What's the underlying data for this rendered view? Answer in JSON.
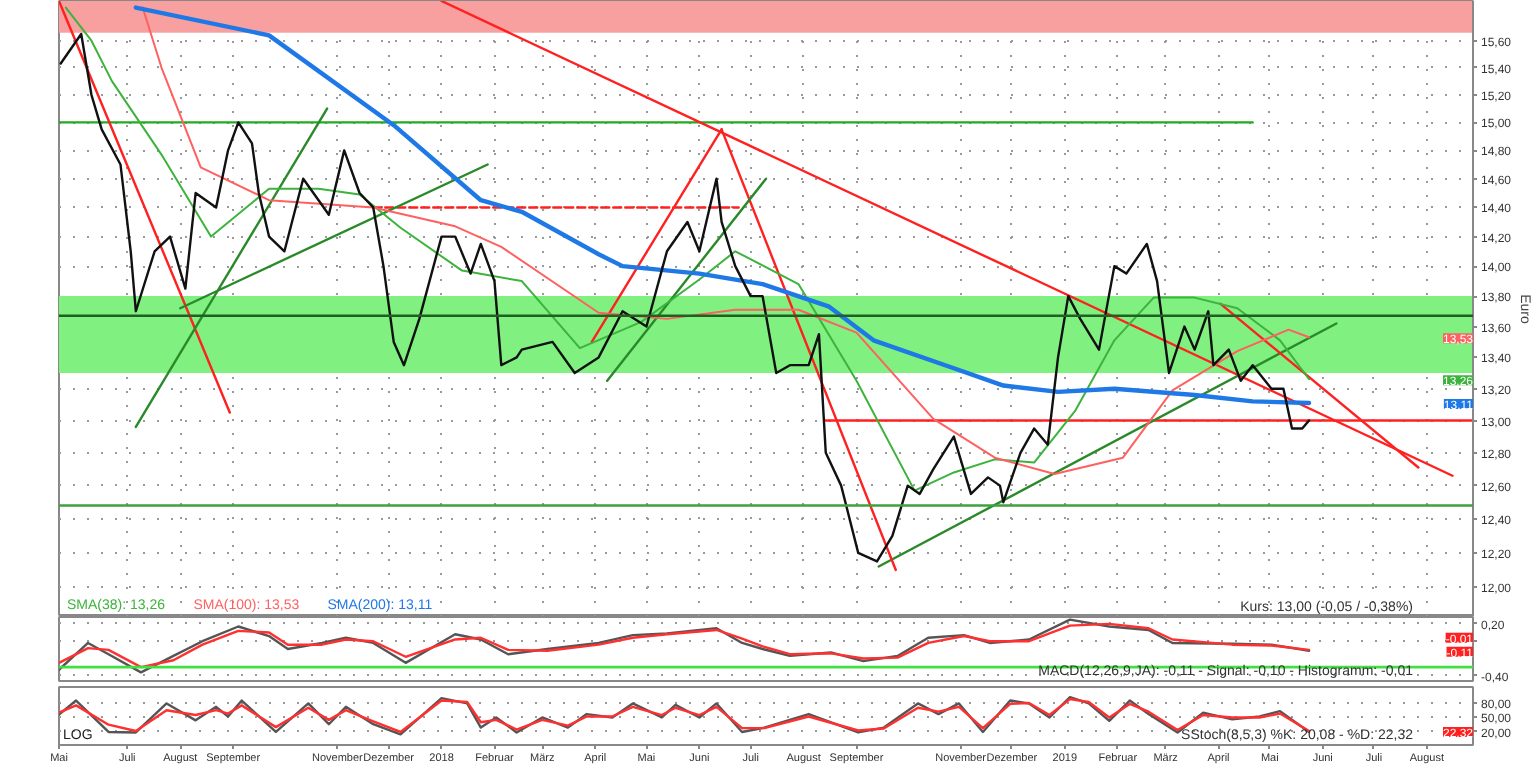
{
  "chart_data": [
    {
      "type": "line",
      "ylabel": "Euro",
      "log": "y",
      "grid": true,
      "tick_labels": "y",
      "xlim": [
        "2017-05-22",
        "2019-08-28"
      ],
      "ylim": [
        11.83,
        15.9
      ],
      "xticks": [
        {
          "value": "2017-05-22",
          "label": null
        },
        {
          "value": "2017-07-01",
          "label": null
        },
        {
          "value": "2017-08-01",
          "label": null
        },
        {
          "value": "2017-09-01",
          "label": null
        },
        {
          "value": "2017-11-01",
          "label": null
        },
        {
          "value": "2017-12-01",
          "label": null
        },
        {
          "value": "2018-01-01",
          "label": null
        },
        {
          "value": "2018-02-01",
          "label": null
        },
        {
          "value": "2018-03-01",
          "label": null
        },
        {
          "value": "2018-04-01",
          "label": null
        },
        {
          "value": "2018-05-01",
          "label": null
        },
        {
          "value": "2018-06-01",
          "label": null
        },
        {
          "value": "2018-07-01",
          "label": null
        },
        {
          "value": "2018-08-01",
          "label": null
        },
        {
          "value": "2018-09-01",
          "label": null
        },
        {
          "value": "2018-11-01",
          "label": null
        },
        {
          "value": "2018-12-01",
          "label": null
        },
        {
          "value": "2019-01-01",
          "label": null
        },
        {
          "value": "2019-02-01",
          "label": null
        },
        {
          "value": "2019-03-01",
          "label": null
        },
        {
          "value": "2019-04-01",
          "label": null
        },
        {
          "value": "2019-05-01",
          "label": null
        },
        {
          "value": "2019-06-01",
          "label": null
        },
        {
          "value": "2019-07-01",
          "label": null
        },
        {
          "value": "2019-08-01",
          "label": null
        }
      ],
      "yticks": [
        {
          "value": 12.0,
          "label": "12,00"
        },
        {
          "value": 12.2,
          "label": "12,20"
        },
        {
          "value": 12.4,
          "label": "12,40"
        },
        {
          "value": 12.6,
          "label": "12,60"
        },
        {
          "value": 12.8,
          "label": "12,80"
        },
        {
          "value": 13.0,
          "label": "13,00"
        },
        {
          "value": 13.2,
          "label": "13,20"
        },
        {
          "value": 13.4,
          "label": "13,40"
        },
        {
          "value": 13.6,
          "label": "13,60"
        },
        {
          "value": 13.8,
          "label": "13,80"
        },
        {
          "value": 14.0,
          "label": "14,00"
        },
        {
          "value": 14.2,
          "label": "14,20"
        },
        {
          "value": 14.4,
          "label": "14,40"
        },
        {
          "value": 14.6,
          "label": "14,60"
        },
        {
          "value": 14.8,
          "label": "14,80"
        },
        {
          "value": 15.0,
          "label": "15,00"
        },
        {
          "value": 15.2,
          "label": "15,20"
        },
        {
          "value": 15.4,
          "label": "15,40"
        },
        {
          "value": 15.6,
          "label": "15,60"
        }
      ],
      "bands": [
        {
          "axis": "y",
          "from": 13.3,
          "to": 13.8,
          "color": "#80f080"
        },
        {
          "axis": "y",
          "from": 15.66,
          "to": 15.9,
          "color": "#f8a0a0"
        }
      ],
      "ref_lines": [
        {
          "axis": "y",
          "value": 13.67,
          "color": "#206020"
        },
        {
          "axis": "y",
          "value": 12.48,
          "color": "#40a040"
        }
      ],
      "series": [
        {
          "type": "line",
          "color": "#22aa22",
          "x": [
            "2017-05-22",
            "2019-04-21"
          ],
          "values": [
            15.0,
            15.0
          ]
        },
        {
          "type": "line",
          "color": "#ff2020",
          "line_style": "dashed",
          "x": [
            "2017-11-22",
            "2018-06-24"
          ],
          "values": [
            14.4,
            14.4
          ]
        },
        {
          "type": "line",
          "color": "#ff2020",
          "x": [
            "2018-08-14",
            "2019-08-28"
          ],
          "values": [
            13.0,
            13.0
          ]
        },
        {
          "type": "line",
          "color": "#ff2020",
          "x": [
            "2018-01-01",
            "2019-08-16"
          ],
          "values": [
            15.9,
            12.66
          ]
        },
        {
          "type": "line",
          "color": "#2a8a2a",
          "x": [
            "2018-09-14",
            "2019-06-09"
          ],
          "values": [
            12.12,
            13.62
          ]
        },
        {
          "type": "line",
          "color": "#ff2020",
          "x": [
            "2019-04-02",
            "2019-07-27"
          ],
          "values": [
            13.75,
            12.71
          ]
        },
        {
          "type": "line",
          "color": "#ff2020",
          "x": [
            "2017-05-22",
            "2017-08-30"
          ],
          "values": [
            15.9,
            13.05
          ]
        },
        {
          "type": "line",
          "color": "#2a8a2a",
          "x": [
            "2017-07-06",
            "2017-10-26"
          ],
          "values": [
            12.96,
            15.1
          ]
        },
        {
          "type": "line",
          "color": "#2a8a2a",
          "x": [
            "2017-08-01",
            "2018-01-28"
          ],
          "values": [
            13.72,
            14.7
          ]
        },
        {
          "type": "line",
          "color": "#ff2020",
          "x": [
            "2018-03-30",
            "2018-06-14"
          ],
          "values": [
            13.5,
            14.95
          ]
        },
        {
          "type": "line",
          "color": "#ff2020",
          "x": [
            "2018-06-14",
            "2018-09-24"
          ],
          "values": [
            14.95,
            12.1
          ]
        },
        {
          "type": "line",
          "color": "#2a8a2a",
          "x": [
            "2018-04-08",
            "2018-07-10"
          ],
          "values": [
            13.25,
            14.6
          ]
        },
        {
          "type": "line",
          "name": "SMA(38): 13,26",
          "color": "#3cb33c",
          "x": [
            "2017-05-26",
            "2017-06-10",
            "2017-06-22",
            "2017-07-21",
            "2017-08-19",
            "2017-09-22",
            "2017-10-21",
            "2017-11-14",
            "2017-12-08",
            "2018-01-13",
            "2018-02-17",
            "2018-03-23",
            "2018-04-28",
            "2018-06-01",
            "2018-06-22",
            "2018-07-29",
            "2018-09-01",
            "2018-10-05",
            "2018-10-28",
            "2018-11-21",
            "2018-12-14",
            "2019-01-07",
            "2019-01-30",
            "2019-02-22",
            "2019-03-18",
            "2019-04-12",
            "2019-05-07",
            "2019-05-24"
          ],
          "values": [
            15.85,
            15.6,
            15.3,
            14.77,
            14.2,
            14.53,
            14.53,
            14.49,
            14.26,
            13.97,
            13.9,
            13.46,
            13.63,
            13.91,
            14.1,
            13.88,
            13.25,
            12.57,
            12.68,
            12.76,
            12.74,
            13.06,
            13.51,
            13.79,
            13.79,
            13.72,
            13.51,
            13.26
          ]
        },
        {
          "type": "line",
          "name": "SMA(100): 13,53",
          "color": "#ff6060",
          "x": [
            "2017-07-10",
            "2017-07-21",
            "2017-08-13",
            "2017-09-22",
            "2017-11-22",
            "2018-01-09",
            "2018-02-05",
            "2018-04-03",
            "2018-05-13",
            "2018-06-22",
            "2018-07-29",
            "2018-09-01",
            "2018-10-16",
            "2018-11-21",
            "2018-12-26",
            "2019-02-04",
            "2019-03-05",
            "2019-04-12",
            "2019-05-12",
            "2019-05-24"
          ],
          "values": [
            15.85,
            15.4,
            14.68,
            14.45,
            14.4,
            14.27,
            14.13,
            13.69,
            13.65,
            13.71,
            13.71,
            13.56,
            13.01,
            12.77,
            12.67,
            12.77,
            13.19,
            13.44,
            13.58,
            13.53
          ]
        },
        {
          "type": "line",
          "name": "SMA(200): 13,11",
          "color": "#1e78e6",
          "x": [
            "2017-07-06",
            "2017-09-22",
            "2017-12-04",
            "2018-01-24",
            "2018-02-17",
            "2018-04-03",
            "2018-04-17",
            "2018-06-01",
            "2018-07-08",
            "2018-08-16",
            "2018-09-11",
            "2018-10-28",
            "2018-11-26",
            "2018-12-28",
            "2019-01-30",
            "2019-03-18",
            "2019-04-21",
            "2019-05-24"
          ],
          "values": [
            15.85,
            15.64,
            14.98,
            14.45,
            14.37,
            14.08,
            14.0,
            13.95,
            13.88,
            13.73,
            13.51,
            13.33,
            13.22,
            13.18,
            13.2,
            13.16,
            13.12,
            13.11
          ]
        },
        {
          "type": "line",
          "color": "#111111",
          "x": [
            "2017-05-23",
            "2017-06-04",
            "2017-06-10",
            "2017-06-16",
            "2017-06-27",
            "2017-07-03",
            "2017-07-06",
            "2017-07-17",
            "2017-07-26",
            "2017-08-04",
            "2017-08-10",
            "2017-08-22",
            "2017-08-29",
            "2017-09-04",
            "2017-09-12",
            "2017-09-16",
            "2017-09-22",
            "2017-10-01",
            "2017-10-12",
            "2017-10-21",
            "2017-10-27",
            "2017-11-05",
            "2017-11-14",
            "2017-11-22",
            "2017-11-28",
            "2017-12-04",
            "2017-12-10",
            "2017-12-19",
            "2018-01-01",
            "2018-01-09",
            "2018-01-18",
            "2018-01-24",
            "2018-02-01",
            "2018-02-05",
            "2018-02-14",
            "2018-02-17",
            "2018-03-07",
            "2018-03-20",
            "2018-04-03",
            "2018-04-17",
            "2018-05-01",
            "2018-05-13",
            "2018-05-25",
            "2018-06-01",
            "2018-06-11",
            "2018-06-14",
            "2018-06-22",
            "2018-07-01",
            "2018-07-08",
            "2018-07-16",
            "2018-07-24",
            "2018-08-04",
            "2018-08-10",
            "2018-08-14",
            "2018-08-23",
            "2018-09-02",
            "2018-09-13",
            "2018-09-22",
            "2018-10-01",
            "2018-10-08",
            "2018-10-16",
            "2018-10-28",
            "2018-11-07",
            "2018-11-17",
            "2018-11-24",
            "2018-11-26",
            "2018-12-06",
            "2018-12-14",
            "2018-12-22",
            "2018-12-28",
            "2019-01-03",
            "2019-01-10",
            "2019-01-21",
            "2019-01-30",
            "2019-02-06",
            "2019-02-18",
            "2019-02-24",
            "2019-03-03",
            "2019-03-12",
            "2019-03-18",
            "2019-03-26",
            "2019-03-29",
            "2019-04-07",
            "2019-04-14",
            "2019-04-21",
            "2019-05-02",
            "2019-05-09",
            "2019-05-14",
            "2019-05-20",
            "2019-05-24"
          ],
          "values": [
            15.43,
            15.65,
            15.2,
            14.95,
            14.7,
            14.1,
            13.7,
            14.1,
            14.2,
            13.85,
            14.5,
            14.4,
            14.8,
            15.0,
            14.85,
            14.5,
            14.2,
            14.1,
            14.6,
            14.45,
            14.35,
            14.8,
            14.5,
            14.4,
            14.0,
            13.5,
            13.35,
            13.65,
            14.2,
            14.2,
            13.95,
            14.15,
            13.9,
            13.35,
            13.4,
            13.45,
            13.5,
            13.3,
            13.4,
            13.7,
            13.6,
            14.1,
            14.3,
            14.1,
            14.6,
            14.3,
            14.0,
            13.8,
            13.8,
            13.3,
            13.35,
            13.35,
            13.55,
            12.8,
            12.6,
            12.2,
            12.15,
            12.3,
            12.6,
            12.55,
            12.7,
            12.9,
            12.55,
            12.65,
            12.6,
            12.5,
            12.8,
            12.95,
            12.85,
            13.4,
            13.8,
            13.65,
            13.45,
            14.0,
            13.95,
            14.15,
            13.9,
            13.3,
            13.6,
            13.45,
            13.7,
            13.35,
            13.45,
            13.25,
            13.35,
            13.2,
            13.2,
            12.95,
            12.95,
            13.0
          ]
        }
      ],
      "annotations": [
        "Kurs: 13,00 (-0,05 / -0,38%)",
        {
          "text": "13,26",
          "y": 13.26
        },
        {
          "text": "13,53",
          "y": 13.53
        },
        {
          "text": "13,11",
          "y": 13.11
        }
      ]
    },
    {
      "type": "line",
      "grid": "y",
      "tick_labels": "y",
      "xlim": [
        "2017-05-22",
        "2019-08-28"
      ],
      "ylim": [
        -0.46,
        0.28
      ],
      "yticks": [
        {
          "value": 0.2,
          "label": "0,20"
        },
        {
          "value": 0.0,
          "label": null
        },
        {
          "value": -0.4,
          "label": "-0,40"
        }
      ],
      "ref_lines": [
        {
          "axis": "y",
          "value": -0.3,
          "color": "#40e040"
        }
      ],
      "series": [
        {
          "type": "line",
          "color": "#555555",
          "x": [
            "2017-05-22",
            "2017-06-08",
            "2017-06-20",
            "2017-07-09",
            "2017-07-28",
            "2017-08-14",
            "2017-09-04",
            "2017-09-22",
            "2017-10-03",
            "2017-10-23",
            "2017-11-06",
            "2017-11-22",
            "2017-12-11",
            "2018-01-09",
            "2018-01-24",
            "2018-02-09",
            "2018-03-04",
            "2018-04-03",
            "2018-04-23",
            "2018-05-13",
            "2018-06-11",
            "2018-06-26",
            "2018-07-08",
            "2018-07-24",
            "2018-08-17",
            "2018-09-05",
            "2018-09-25",
            "2018-10-13",
            "2018-11-03",
            "2018-11-18",
            "2018-12-11",
            "2019-01-04",
            "2019-01-27",
            "2019-02-19",
            "2019-03-05",
            "2019-04-09",
            "2019-05-02",
            "2019-05-24"
          ],
          "values": [
            -0.33,
            -0.02,
            -0.15,
            -0.36,
            -0.17,
            0.0,
            0.17,
            0.06,
            -0.09,
            -0.02,
            0.04,
            -0.02,
            -0.25,
            0.08,
            0.02,
            -0.15,
            -0.09,
            -0.02,
            0.07,
            0.09,
            0.15,
            -0.02,
            -0.09,
            -0.17,
            -0.13,
            -0.23,
            -0.17,
            0.04,
            0.07,
            -0.02,
            0.02,
            0.25,
            0.17,
            0.13,
            -0.02,
            -0.03,
            -0.04,
            -0.11
          ]
        },
        {
          "type": "line",
          "color": "#ff3030",
          "x": [
            "2017-05-22",
            "2017-06-08",
            "2017-06-20",
            "2017-07-09",
            "2017-07-28",
            "2017-08-14",
            "2017-09-04",
            "2017-09-22",
            "2017-10-03",
            "2017-10-23",
            "2017-11-06",
            "2017-11-22",
            "2017-12-11",
            "2018-01-09",
            "2018-01-24",
            "2018-02-09",
            "2018-03-04",
            "2018-04-03",
            "2018-04-23",
            "2018-05-13",
            "2018-06-11",
            "2018-06-26",
            "2018-07-08",
            "2018-07-24",
            "2018-08-17",
            "2018-09-05",
            "2018-09-25",
            "2018-10-13",
            "2018-11-03",
            "2018-11-18",
            "2018-12-11",
            "2019-01-04",
            "2019-01-27",
            "2019-02-19",
            "2019-03-05",
            "2019-04-09",
            "2019-05-02",
            "2019-05-24"
          ],
          "values": [
            -0.25,
            -0.08,
            -0.1,
            -0.3,
            -0.22,
            -0.04,
            0.12,
            0.1,
            -0.04,
            -0.04,
            0.02,
            0.0,
            -0.18,
            0.02,
            0.04,
            -0.1,
            -0.11,
            -0.04,
            0.04,
            0.08,
            0.13,
            0.03,
            -0.06,
            -0.15,
            -0.14,
            -0.2,
            -0.19,
            -0.02,
            0.06,
            0.0,
            0.0,
            0.18,
            0.2,
            0.15,
            0.02,
            -0.04,
            -0.05,
            -0.1
          ]
        }
      ],
      "annotations": [
        "MACD(12,26,9,JA): -0,11 - Signal: -0,10 - Histogramm: -0,01",
        {
          "text": "-0,01",
          "y": -0.01
        },
        {
          "text": "-0,11",
          "y": -0.11
        }
      ]
    },
    {
      "type": "line",
      "grid": "y",
      "xlim": [
        "2017-05-22",
        "2019-08-28"
      ],
      "ylim": [
        -7,
        113
      ],
      "xticks": [
        {
          "value": "2017-05-22",
          "label": "Mai"
        },
        {
          "value": "2017-07-01",
          "label": "Juli"
        },
        {
          "value": "2017-08-01",
          "label": "August"
        },
        {
          "value": "2017-09-01",
          "label": "September"
        },
        {
          "value": "2017-11-01",
          "label": "November"
        },
        {
          "value": "2017-12-01",
          "label": "Dezember"
        },
        {
          "value": "2018-01-01",
          "label": "2018"
        },
        {
          "value": "2018-02-01",
          "label": "Februar"
        },
        {
          "value": "2018-03-01",
          "label": "März"
        },
        {
          "value": "2018-04-01",
          "label": "April"
        },
        {
          "value": "2018-05-01",
          "label": "Mai"
        },
        {
          "value": "2018-06-01",
          "label": "Juni"
        },
        {
          "value": "2018-07-01",
          "label": "Juli"
        },
        {
          "value": "2018-08-01",
          "label": "August"
        },
        {
          "value": "2018-09-01",
          "label": "September"
        },
        {
          "value": "2018-11-01",
          "label": "November"
        },
        {
          "value": "2018-12-01",
          "label": "Dezember"
        },
        {
          "value": "2019-01-01",
          "label": "2019"
        },
        {
          "value": "2019-02-01",
          "label": "Februar"
        },
        {
          "value": "2019-03-01",
          "label": "März"
        },
        {
          "value": "2019-04-01",
          "label": "April"
        },
        {
          "value": "2019-05-01",
          "label": "Mai"
        },
        {
          "value": "2019-06-01",
          "label": "Juni"
        },
        {
          "value": "2019-07-01",
          "label": "Juli"
        },
        {
          "value": "2019-08-01",
          "label": "August"
        }
      ],
      "yticks": [
        {
          "value": 80,
          "label": "80,00"
        },
        {
          "value": 50,
          "label": "50,00"
        },
        {
          "value": 20,
          "label": "20,00"
        }
      ],
      "series": [
        {
          "type": "line",
          "color": "#555555",
          "x": [
            "2017-05-22",
            "2017-06-01",
            "2017-06-20",
            "2017-07-06",
            "2017-07-24",
            "2017-08-10",
            "2017-08-22",
            "2017-08-29",
            "2017-09-06",
            "2017-09-26",
            "2017-10-15",
            "2017-10-27",
            "2017-11-06",
            "2017-11-22",
            "2017-12-08",
            "2018-01-01",
            "2018-01-16",
            "2018-01-24",
            "2018-02-02",
            "2018-02-14",
            "2018-03-01",
            "2018-03-16",
            "2018-03-27",
            "2018-04-11",
            "2018-04-23",
            "2018-05-10",
            "2018-05-18",
            "2018-06-01",
            "2018-06-11",
            "2018-06-26",
            "2018-07-09",
            "2018-08-04",
            "2018-09-02",
            "2018-09-17",
            "2018-10-07",
            "2018-10-19",
            "2018-10-31",
            "2018-11-14",
            "2018-11-30",
            "2018-12-11",
            "2018-12-23",
            "2019-01-04",
            "2019-01-15",
            "2019-01-27",
            "2019-02-08",
            "2019-02-19",
            "2019-03-08",
            "2019-03-23",
            "2019-04-09",
            "2019-04-25",
            "2019-05-07",
            "2019-05-24"
          ],
          "values": [
            56,
            85,
            20,
            19,
            79,
            44,
            72,
            52,
            85,
            20,
            79,
            36,
            72,
            36,
            15,
            90,
            79,
            29,
            50,
            19,
            50,
            29,
            57,
            50,
            79,
            50,
            76,
            50,
            79,
            20,
            29,
            57,
            19,
            29,
            79,
            57,
            79,
            20,
            85,
            79,
            50,
            92,
            79,
            43,
            85,
            57,
            19,
            60,
            46,
            52,
            63,
            20
          ]
        },
        {
          "type": "line",
          "color": "#ff3030",
          "x": [
            "2017-05-22",
            "2017-06-01",
            "2017-06-20",
            "2017-07-06",
            "2017-07-24",
            "2017-08-10",
            "2017-08-22",
            "2017-08-29",
            "2017-09-06",
            "2017-09-26",
            "2017-10-15",
            "2017-10-27",
            "2017-11-06",
            "2017-11-22",
            "2017-12-08",
            "2018-01-01",
            "2018-01-16",
            "2018-01-24",
            "2018-02-02",
            "2018-02-14",
            "2018-03-01",
            "2018-03-16",
            "2018-03-27",
            "2018-04-11",
            "2018-04-23",
            "2018-05-10",
            "2018-05-18",
            "2018-06-01",
            "2018-06-11",
            "2018-06-26",
            "2018-07-09",
            "2018-08-04",
            "2018-09-02",
            "2018-09-17",
            "2018-10-07",
            "2018-10-19",
            "2018-10-31",
            "2018-11-14",
            "2018-11-30",
            "2018-12-11",
            "2018-12-23",
            "2019-01-04",
            "2019-01-15",
            "2019-01-27",
            "2019-02-08",
            "2019-02-19",
            "2019-03-08",
            "2019-03-23",
            "2019-04-09",
            "2019-04-25",
            "2019-05-07",
            "2019-05-24"
          ],
          "values": [
            60,
            75,
            35,
            22,
            65,
            55,
            65,
            58,
            75,
            30,
            70,
            45,
            65,
            42,
            20,
            85,
            82,
            40,
            45,
            25,
            45,
            33,
            52,
            52,
            72,
            55,
            70,
            55,
            72,
            28,
            28,
            52,
            23,
            27,
            70,
            62,
            72,
            28,
            78,
            80,
            55,
            88,
            82,
            50,
            78,
            62,
            24,
            55,
            50,
            50,
            58,
            22
          ]
        }
      ],
      "annotations": [
        "SStoch(8,5,3) %K: 20,08 - %D: 22,32",
        "LOG",
        {
          "text": "22,32",
          "y": 22
        }
      ]
    }
  ]
}
